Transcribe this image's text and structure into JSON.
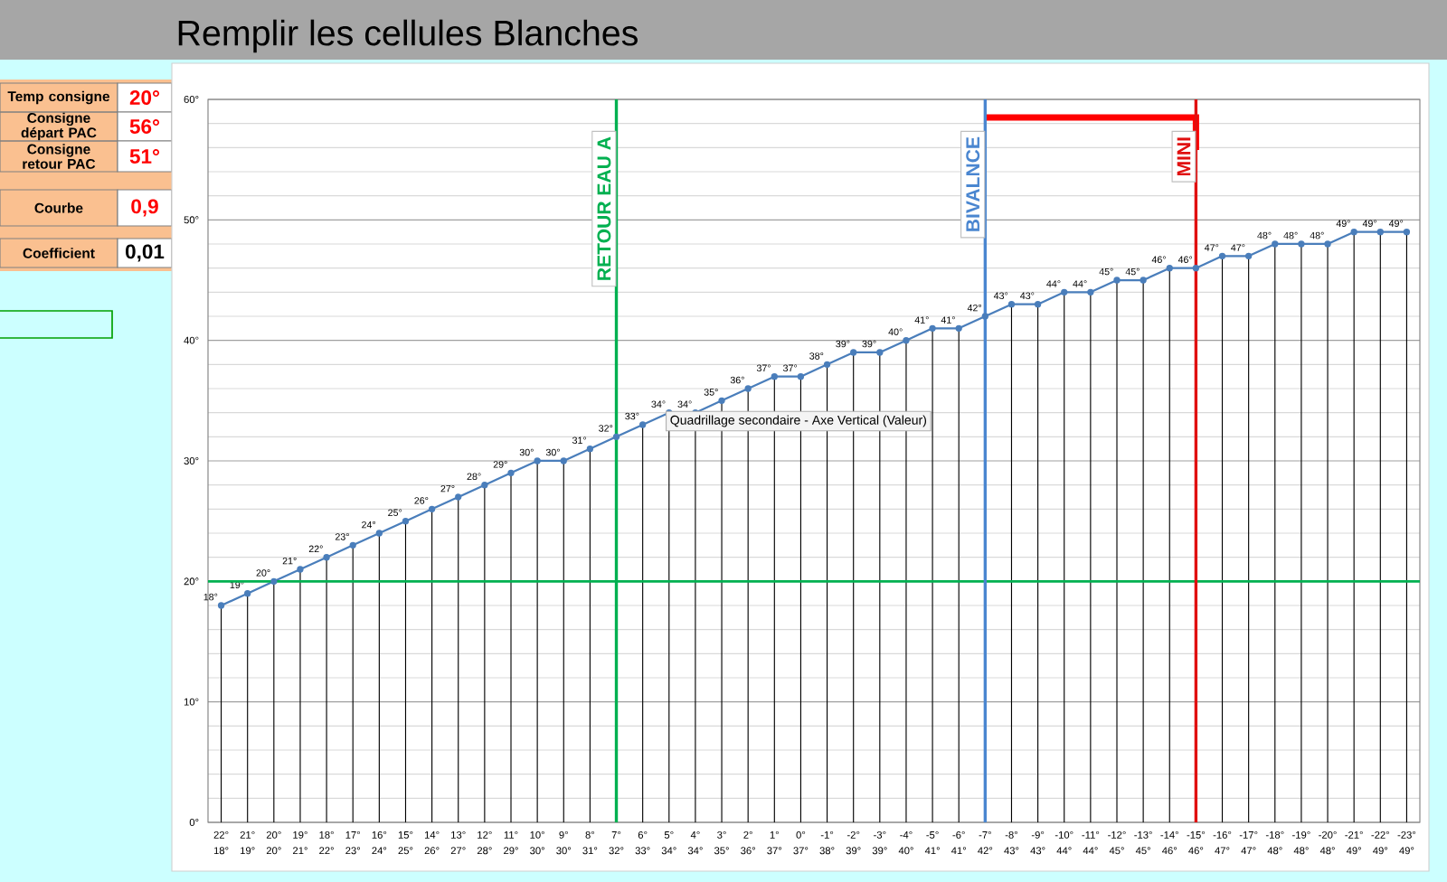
{
  "chart_data": [
    {
      "type": "other",
      "annotations": [
        "Temp consigne",
        "20°",
        "Consigne départ PAC",
        "56°",
        "Consigne retour PAC",
        "51°",
        "Courbe",
        "0,9",
        "Coefficient",
        "0,01"
      ]
    },
    {
      "type": "line",
      "title": "Remplir les cellules Blanches",
      "categories": [
        "22°",
        "21°",
        "20°",
        "19°",
        "18°",
        "17°",
        "16°",
        "15°",
        "14°",
        "13°",
        "12°",
        "11°",
        "10°",
        "9°",
        "8°",
        "7°",
        "6°",
        "5°",
        "4°",
        "3°",
        "2°",
        "1°",
        "0°",
        "-1°",
        "-2°",
        "-3°",
        "-4°",
        "-5°",
        "-6°",
        "-7°",
        "-8°",
        "-9°",
        "-10°",
        "-11°",
        "-12°",
        "-13°",
        "-14°",
        "-15°",
        "-16°",
        "-17°",
        "-18°",
        "-19°",
        "-20°",
        "-21°",
        "-22°",
        "-23°"
      ],
      "series": [
        {
          "color": "#4a7ebb",
          "values": [
            18,
            19,
            20,
            21,
            22,
            23,
            24,
            25,
            26,
            27,
            28,
            29,
            30,
            30,
            31,
            32,
            33,
            34,
            34,
            35,
            36,
            37,
            37,
            38,
            39,
            39,
            40,
            41,
            41,
            42,
            43,
            43,
            44,
            44,
            45,
            45,
            46,
            46,
            47,
            47,
            48,
            48,
            48,
            49,
            49,
            49
          ],
          "value_labels": [
            "18°",
            "19°",
            "20°",
            "21°",
            "22°",
            "23°",
            "24°",
            "25°",
            "26°",
            "27°",
            "28°",
            "29°",
            "30°",
            "30°",
            "31°",
            "32°",
            "33°",
            "34°",
            "34°",
            "35°",
            "36°",
            "37°",
            "37°",
            "38°",
            "39°",
            "39°",
            "40°",
            "41°",
            "41°",
            "42°",
            "43°",
            "43°",
            "44°",
            "44°",
            "45°",
            "45°",
            "46°",
            "46°",
            "47°",
            "47°",
            "48°",
            "48°",
            "48°",
            "49°",
            "49°",
            "49°"
          ]
        }
      ],
      "ylim": [
        0,
        60
      ],
      "yticks": [
        {
          "value": 0,
          "label": "0°"
        },
        {
          "value": 10,
          "label": "10°"
        },
        {
          "value": 20,
          "label": "20°"
        },
        {
          "value": 30,
          "label": "30°"
        },
        {
          "value": 40,
          "label": "40°"
        },
        {
          "value": 50,
          "label": "50°"
        },
        {
          "value": 60,
          "label": "60°"
        }
      ],
      "grid": true,
      "marker": "circle",
      "line_style": "solid",
      "ref_lines": [
        {
          "axis": "y",
          "value": 20,
          "color": "#00b050"
        },
        {
          "axis": "x",
          "value": "7°",
          "label": "RETOUR EAU  A",
          "color": "#00b050"
        },
        {
          "axis": "x",
          "value": "-7°",
          "label": "BIVALNCE",
          "color": "#4a86d0"
        },
        {
          "axis": "x",
          "value": "-15°",
          "label": "MINI",
          "color": "#e01010"
        }
      ],
      "annotations": [
        "Quadrillage secondaire - Axe Vertical (Valeur)"
      ]
    }
  ]
}
